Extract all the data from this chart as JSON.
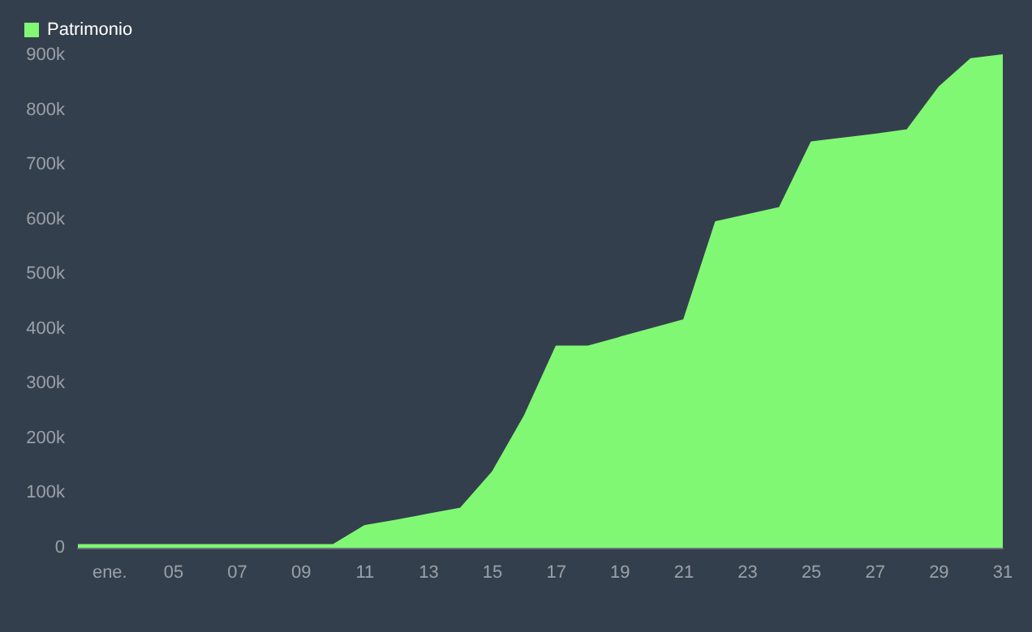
{
  "chart_data": {
    "type": "area",
    "categories": [
      null,
      "ene.",
      null,
      "05",
      null,
      "07",
      null,
      "09",
      null,
      "11",
      null,
      "13",
      null,
      "15",
      null,
      "17",
      null,
      "19",
      null,
      "21",
      null,
      "23",
      null,
      "25",
      null,
      "27",
      null,
      "29",
      null,
      "31"
    ],
    "series": [
      {
        "name": "Patrimonio",
        "color": "#80f873",
        "values": [
          5000,
          5000,
          5000,
          5000,
          5000,
          5000,
          5000,
          5000,
          5000,
          40000,
          50000,
          61000,
          72000,
          138000,
          240000,
          368000,
          368000,
          384000,
          400000,
          416000,
          595000,
          608000,
          621000,
          741000,
          748000,
          755000,
          763000,
          841000,
          893000,
          900000
        ]
      }
    ],
    "ylim": [
      0,
      900000
    ],
    "yticks": [
      0,
      {
        "value": 100000,
        "label": "100k"
      },
      {
        "value": 200000,
        "label": "200k"
      },
      {
        "value": 300000,
        "label": "300k"
      },
      {
        "value": 400000,
        "label": "400k"
      },
      {
        "value": 500000,
        "label": "500k"
      },
      {
        "value": 600000,
        "label": "600k"
      },
      {
        "value": 700000,
        "label": "700k"
      },
      {
        "value": 800000,
        "label": "800k"
      },
      {
        "value": 900000,
        "label": "900k"
      }
    ],
    "grid": false,
    "legend": "top left"
  }
}
